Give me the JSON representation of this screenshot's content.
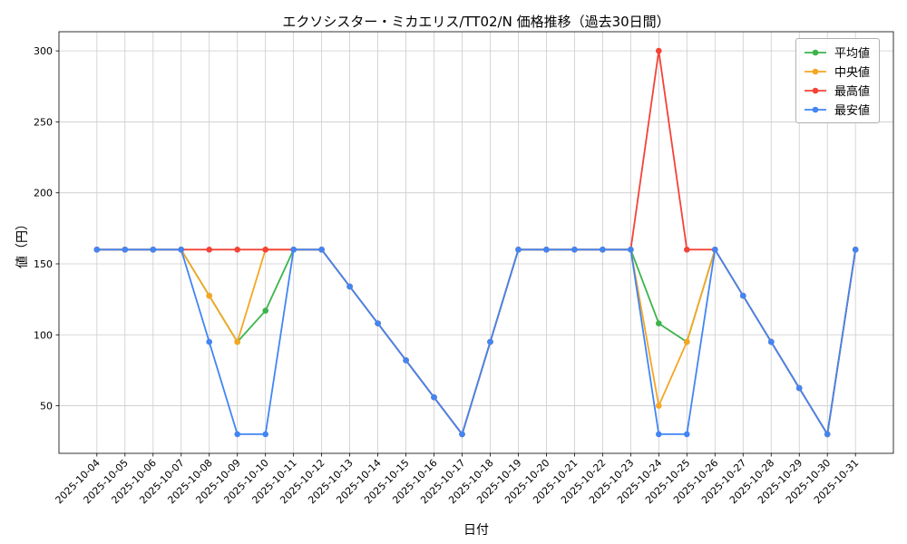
{
  "chart_data": {
    "type": "line",
    "title": "エクソシスター・ミカエリス/TT02/N 価格推移（過去30日間）",
    "xlabel": "日付",
    "ylabel": "値（円）",
    "grid": true,
    "legend_position": "upper right",
    "ylim": [
      16.5,
      313.5
    ],
    "yticks": [
      50,
      100,
      150,
      200,
      250,
      300
    ],
    "categories": [
      "2025-10-04",
      "2025-10-05",
      "2025-10-06",
      "2025-10-07",
      "2025-10-08",
      "2025-10-09",
      "2025-10-10",
      "2025-10-11",
      "2025-10-12",
      "2025-10-13",
      "2025-10-14",
      "2025-10-15",
      "2025-10-16",
      "2025-10-17",
      "2025-10-18",
      "2025-10-19",
      "2025-10-20",
      "2025-10-21",
      "2025-10-22",
      "2025-10-23",
      "2025-10-24",
      "2025-10-25",
      "2025-10-26",
      "2025-10-27",
      "2025-10-28",
      "2025-10-29",
      "2025-10-30",
      "2025-10-31"
    ],
    "series": [
      {
        "name": "平均値",
        "color": "#3cb44b",
        "values": [
          160,
          160,
          160,
          160,
          127.5,
          95,
          117,
          160,
          160,
          134,
          108,
          82,
          56,
          30,
          95,
          160,
          160,
          160,
          160,
          160,
          108,
          95,
          160,
          127.5,
          95,
          62.5,
          30,
          160
        ]
      },
      {
        "name": "中央値",
        "color": "#f5a623",
        "values": [
          160,
          160,
          160,
          160,
          127.5,
          95,
          160,
          160,
          160,
          134,
          108,
          82,
          56,
          30,
          95,
          160,
          160,
          160,
          160,
          160,
          50,
          95,
          160,
          127.5,
          95,
          62.5,
          30,
          160
        ]
      },
      {
        "name": "最高値",
        "color": "#f44336",
        "values": [
          160,
          160,
          160,
          160,
          160,
          160,
          160,
          160,
          160,
          134,
          108,
          82,
          56,
          30,
          95,
          160,
          160,
          160,
          160,
          160,
          300,
          160,
          160,
          127.5,
          95,
          62.5,
          30,
          160
        ]
      },
      {
        "name": "最安値",
        "color": "#4285f4",
        "values": [
          160,
          160,
          160,
          160,
          95,
          30,
          30,
          160,
          160,
          134,
          108,
          82,
          56,
          30,
          95,
          160,
          160,
          160,
          160,
          160,
          30,
          30,
          160,
          127.5,
          95,
          62.5,
          30,
          160
        ]
      }
    ]
  }
}
